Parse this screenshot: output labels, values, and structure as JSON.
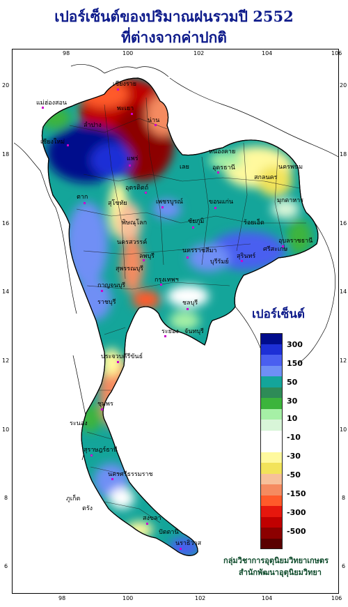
{
  "title_line1": "เปอร์เซ็นต์ของปริมาณฝนรวมปี  2552",
  "title_line2": "ที่ต่างจากค่าปกติ",
  "legend": {
    "title": "เปอร์เซ็นต์",
    "colors": [
      "#000c8c",
      "#1d2fd6",
      "#4a5ff0",
      "#6f8ff5",
      "#14a59a",
      "#2e8b57",
      "#3cb43c",
      "#a6f0a6",
      "#d8f5d8",
      "#ffffff",
      "#ffffff",
      "#fff99e",
      "#f2e35a",
      "#f7c09a",
      "#f58b60",
      "#ff5a2a",
      "#e6170d",
      "#c00000",
      "#8c0000",
      "#5a0000"
    ],
    "labels": [
      "300",
      "150",
      "50",
      "30",
      "10",
      "-10",
      "-30",
      "-50",
      "-150",
      "-300",
      "-500"
    ]
  },
  "axes": {
    "lon_ticks": [
      "98",
      "100",
      "102",
      "104",
      "106"
    ],
    "lat_ticks": [
      "20",
      "18",
      "16",
      "14",
      "12",
      "10",
      "8",
      "6"
    ]
  },
  "places": [
    "เชียงราย",
    "แม่ฮ่องสอน",
    "เชียงใหม่",
    "พะเยา",
    "น่าน",
    "ลำปาง",
    "แพร่",
    "อุตรดิตถ์",
    "ตาก",
    "สุโขทัย",
    "พิษณุโลก",
    "หนองคาย",
    "อุดรธานี",
    "สกลนคร",
    "นครพนม",
    "เลย",
    "ขอนแก่น",
    "มุกดาหาร",
    "เพชรบูรณ์",
    "ชัยภูมิ",
    "นครสวรรค์",
    "ลพบุรี",
    "อุบลราชธานี",
    "นครราชสีมา",
    "บุรีรัมย์",
    "สุรินทร์",
    "ศรีสะเกษ",
    "ร้อยเอ็ด",
    "กาญจนบุรี",
    "สุพรรณบุรี",
    "ราชบุรี",
    "กรุงเทพฯ",
    "ชลบุรี",
    "ระยอง",
    "จันทบุรี",
    "ประจวบคีรีขันธ์",
    "ชุมพร",
    "ระนอง",
    "สุราษฎร์ธานี",
    "ภูเก็ต",
    "ตรัง",
    "สงขลา",
    "ปัตตานี",
    "นราธิวาส",
    "นครศรีธรรมราช"
  ],
  "credit_line1": "กลุ่มวิชาการอุตุนิยมวิทยาเกษตร",
  "credit_line2": "สำนักพัฒนาอุตุนิยมวิทยา"
}
